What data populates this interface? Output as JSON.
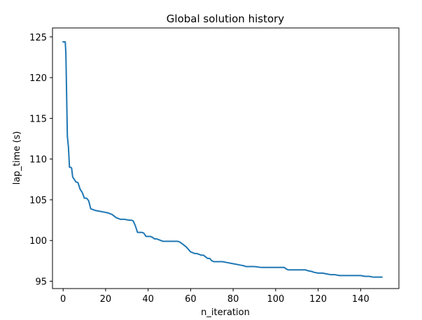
{
  "chart_data": {
    "type": "line",
    "title": "Global solution history",
    "xlabel": "n_iteration",
    "ylabel": "lap_time (s)",
    "xlim": [
      -5,
      158
    ],
    "ylim": [
      94.1,
      126.1
    ],
    "xticks": [
      0,
      20,
      40,
      60,
      80,
      100,
      120,
      140
    ],
    "yticks": [
      95,
      100,
      105,
      110,
      115,
      120,
      125
    ],
    "grid": false,
    "legend": "none",
    "series": [
      {
        "color": "#1f77b4",
        "x": [
          0,
          0.7,
          1,
          1.3,
          2,
          2.5,
          3,
          3.5,
          4,
          4.5,
          5,
          6,
          7,
          8,
          9,
          10,
          11,
          12,
          13,
          15,
          17,
          19,
          21,
          23,
          25,
          27,
          29,
          31,
          32,
          33,
          34,
          35,
          36,
          37,
          38,
          39,
          41,
          42,
          43,
          44,
          45,
          47,
          50,
          52,
          54,
          55,
          57,
          58,
          60,
          61,
          62,
          63,
          64,
          65,
          66,
          67,
          68,
          69,
          70,
          71,
          73,
          75,
          77,
          79,
          81,
          83,
          85,
          86,
          87,
          90,
          93,
          95,
          98,
          100,
          102,
          104,
          105,
          106,
          108,
          110,
          112,
          114,
          115,
          117,
          118,
          120,
          122,
          124,
          126,
          128,
          130,
          132,
          134,
          136,
          138,
          140,
          142,
          144,
          146,
          148,
          150
        ],
        "y": [
          124.4,
          124.4,
          124.4,
          123.0,
          112.8,
          111.5,
          109.0,
          109.0,
          108.9,
          107.8,
          107.6,
          107.2,
          107.1,
          106.3,
          105.9,
          105.2,
          105.2,
          104.9,
          103.9,
          103.7,
          103.6,
          103.5,
          103.4,
          103.2,
          102.8,
          102.6,
          102.6,
          102.5,
          102.5,
          102.4,
          101.8,
          101.0,
          101.0,
          101.0,
          100.9,
          100.5,
          100.5,
          100.4,
          100.2,
          100.2,
          100.1,
          99.9,
          99.9,
          99.9,
          99.9,
          99.8,
          99.4,
          99.2,
          98.6,
          98.5,
          98.4,
          98.4,
          98.3,
          98.2,
          98.2,
          98.0,
          97.8,
          97.8,
          97.5,
          97.4,
          97.4,
          97.4,
          97.3,
          97.2,
          97.1,
          97.0,
          96.9,
          96.8,
          96.8,
          96.8,
          96.7,
          96.7,
          96.7,
          96.7,
          96.7,
          96.7,
          96.5,
          96.4,
          96.4,
          96.4,
          96.4,
          96.4,
          96.3,
          96.2,
          96.1,
          96.0,
          96.0,
          95.9,
          95.8,
          95.8,
          95.7,
          95.7,
          95.7,
          95.7,
          95.7,
          95.7,
          95.6,
          95.6,
          95.5,
          95.5,
          95.5
        ]
      }
    ]
  }
}
